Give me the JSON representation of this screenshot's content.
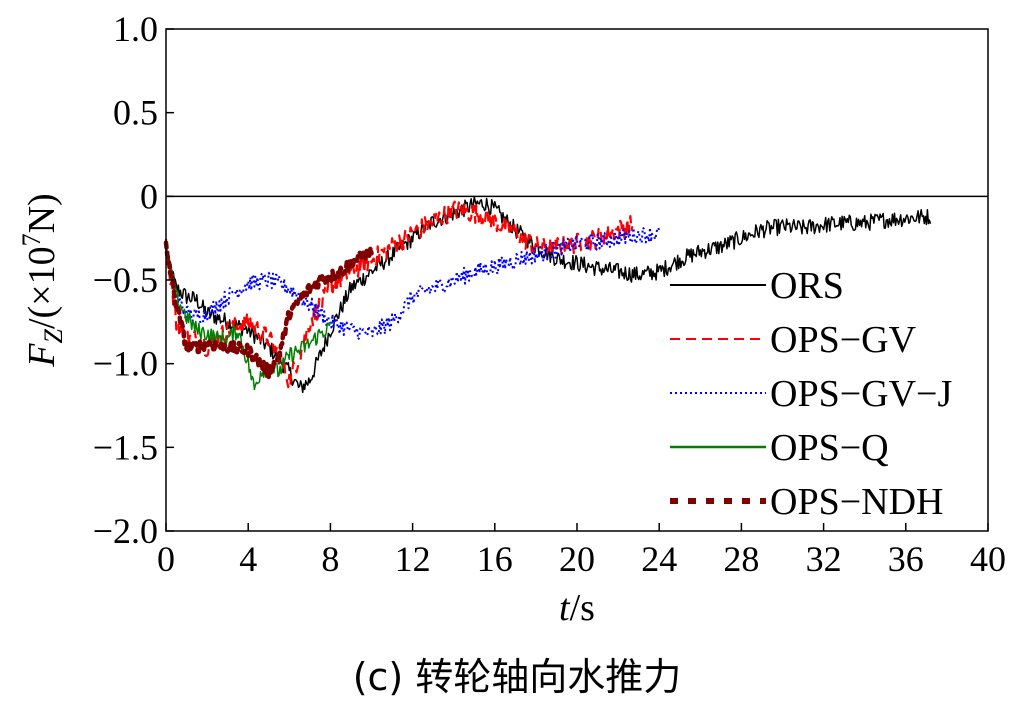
{
  "chart_data": {
    "type": "line",
    "xlabel": "t/s",
    "ylabel": "FZ/(×10^7N)",
    "caption": "(c) 转轮轴向水推力",
    "xlim": [
      0,
      40
    ],
    "ylim": [
      -2.0,
      1.0
    ],
    "xticks": [
      0,
      4,
      8,
      12,
      16,
      20,
      24,
      28,
      32,
      36,
      40
    ],
    "xtick_labels": [
      "0",
      "4",
      "8",
      "12",
      "16",
      "20",
      "24",
      "28",
      "32",
      "36",
      "40"
    ],
    "yticks": [
      1.0,
      0.5,
      0,
      -0.5,
      -1.0,
      -1.5,
      -2.0
    ],
    "ytick_labels": [
      "1.0",
      "0.5",
      "0",
      "−0.5",
      "−1.0",
      "−1.5",
      "−2.0"
    ],
    "reference_line_y": 0,
    "legend_position": "right",
    "series": [
      {
        "name": "ORS",
        "color": "#000000",
        "style": "solid",
        "x": [
          0,
          0.5,
          1.0,
          1.5,
          2.0,
          3.0,
          4.0,
          5.0,
          6.0,
          6.5,
          7.0,
          8.0,
          9.0,
          10.0,
          11.0,
          12.0,
          13.0,
          14.0,
          15.0,
          15.5,
          16.0,
          17.0,
          18.0,
          19.0,
          20.0,
          21.0,
          22.0,
          23.0,
          24.0,
          25.0,
          26.0,
          27.0,
          28.0,
          29.0,
          30.0,
          31.0,
          32.0,
          33.0,
          34.0,
          35.0,
          36.0,
          37.2
        ],
        "y": [
          -0.35,
          -0.55,
          -0.6,
          -0.62,
          -0.7,
          -0.75,
          -0.8,
          -0.9,
          -1.05,
          -1.15,
          -1.1,
          -0.8,
          -0.55,
          -0.45,
          -0.35,
          -0.25,
          -0.15,
          -0.1,
          -0.05,
          -0.04,
          -0.08,
          -0.2,
          -0.3,
          -0.37,
          -0.4,
          -0.43,
          -0.45,
          -0.47,
          -0.45,
          -0.38,
          -0.33,
          -0.3,
          -0.25,
          -0.2,
          -0.18,
          -0.19,
          -0.17,
          -0.16,
          -0.16,
          -0.14,
          -0.13,
          -0.12
        ],
        "noise": 0.05
      },
      {
        "name": "OPS−GV",
        "color": "#ff0000",
        "style": "dashed",
        "x": [
          0,
          0.5,
          1.0,
          1.5,
          2.0,
          3.0,
          4.0,
          5.0,
          5.5,
          6.0,
          6.5,
          7.0,
          8.0,
          9.0,
          10.0,
          11.0,
          12.0,
          13.0,
          14.0,
          15.0,
          16.0,
          17.0,
          18.0,
          19.0,
          20.0,
          21.0,
          22.0,
          22.7
        ],
        "y": [
          -0.3,
          -0.75,
          -0.85,
          -0.85,
          -0.9,
          -0.8,
          -0.75,
          -0.85,
          -0.95,
          -1.1,
          -0.95,
          -0.75,
          -0.55,
          -0.45,
          -0.38,
          -0.3,
          -0.22,
          -0.15,
          -0.08,
          -0.1,
          -0.15,
          -0.22,
          -0.3,
          -0.3,
          -0.28,
          -0.25,
          -0.2,
          -0.17
        ],
        "noise": 0.06
      },
      {
        "name": "OPS−GV−J",
        "color": "#0000ff",
        "style": "dotted",
        "x": [
          0,
          0.5,
          1.0,
          1.5,
          2.0,
          3.0,
          4.0,
          5.0,
          6.0,
          7.0,
          8.0,
          9.0,
          10.0,
          11.0,
          12.0,
          13.0,
          14.0,
          15.0,
          16.0,
          17.0,
          18.0,
          19.0,
          20.0,
          21.0,
          22.0,
          23.0,
          24.0
        ],
        "y": [
          -0.3,
          -0.6,
          -0.7,
          -0.72,
          -0.7,
          -0.6,
          -0.52,
          -0.5,
          -0.55,
          -0.65,
          -0.75,
          -0.8,
          -0.82,
          -0.75,
          -0.6,
          -0.55,
          -0.5,
          -0.45,
          -0.42,
          -0.38,
          -0.35,
          -0.32,
          -0.28,
          -0.27,
          -0.25,
          -0.23,
          -0.22
        ],
        "noise": 0.05
      },
      {
        "name": "OPS−Q",
        "color": "#008000",
        "style": "solid",
        "x": [
          0,
          0.5,
          1.0,
          1.5,
          2.0,
          2.5,
          3.0,
          3.5,
          4.0,
          4.3,
          4.6,
          5.0,
          5.5,
          6.0,
          6.5,
          7.0,
          7.5,
          8.0
        ],
        "y": [
          -0.3,
          -0.6,
          -0.72,
          -0.8,
          -0.82,
          -0.85,
          -0.85,
          -0.8,
          -1.0,
          -1.15,
          -1.05,
          -1.02,
          -1.05,
          -0.95,
          -0.92,
          -0.88,
          -0.82,
          -0.78
        ],
        "noise": 0.05
      },
      {
        "name": "OPS−NDH",
        "color": "#800000",
        "style": "thick-dotted",
        "x": [
          0,
          0.5,
          1.0,
          1.5,
          2.0,
          3.0,
          4.0,
          5.0,
          5.5,
          6.0,
          6.5,
          7.0,
          7.5,
          8.0,
          8.5,
          9.0,
          9.5,
          10.0
        ],
        "y": [
          -0.3,
          -0.65,
          -0.9,
          -0.9,
          -0.88,
          -0.9,
          -0.92,
          -1.05,
          -0.95,
          -0.7,
          -0.62,
          -0.55,
          -0.5,
          -0.48,
          -0.45,
          -0.4,
          -0.36,
          -0.33
        ],
        "noise": 0.035
      }
    ]
  }
}
